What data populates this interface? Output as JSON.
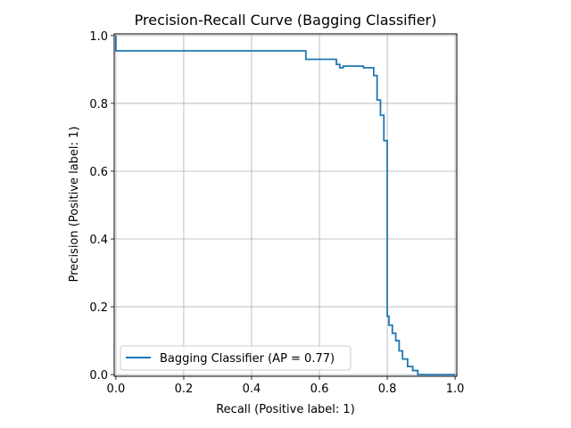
{
  "chart_data": {
    "type": "line",
    "title": "Precision-Recall Curve (Bagging Classifier)",
    "xlabel": "Recall (Positive label: 1)",
    "ylabel": "Precision (Positive label: 1)",
    "xlim": [
      -0.005,
      1.005
    ],
    "ylim": [
      -0.005,
      1.005
    ],
    "xticks": [
      0.0,
      0.2,
      0.4,
      0.6,
      0.8,
      1.0
    ],
    "xtick_labels": [
      "0.0",
      "0.2",
      "0.4",
      "0.6",
      "0.8",
      "1.0"
    ],
    "yticks": [
      0.0,
      0.2,
      0.4,
      0.6,
      0.8,
      1.0
    ],
    "ytick_labels": [
      "0.0",
      "0.2",
      "0.4",
      "0.6",
      "0.8",
      "1.0"
    ],
    "grid": true,
    "legend_position": "lower-left",
    "step_style": "post",
    "series": [
      {
        "name": "Bagging Classifier (AP = 0.77)",
        "color": "#1f77b4",
        "x": [
          1.0,
          0.9,
          0.89,
          0.875,
          0.86,
          0.85,
          0.845,
          0.835,
          0.825,
          0.815,
          0.805,
          0.8,
          0.8,
          0.79,
          0.78,
          0.77,
          0.76,
          0.73,
          0.7,
          0.67,
          0.66,
          0.65,
          0.56,
          0.0,
          0.0
        ],
        "y": [
          0.0,
          0.0,
          0.012,
          0.024,
          0.046,
          0.046,
          0.07,
          0.1,
          0.122,
          0.146,
          0.172,
          0.18,
          0.69,
          0.765,
          0.81,
          0.882,
          0.905,
          0.91,
          0.91,
          0.905,
          0.915,
          0.93,
          0.955,
          0.967,
          1.0
        ]
      }
    ]
  }
}
